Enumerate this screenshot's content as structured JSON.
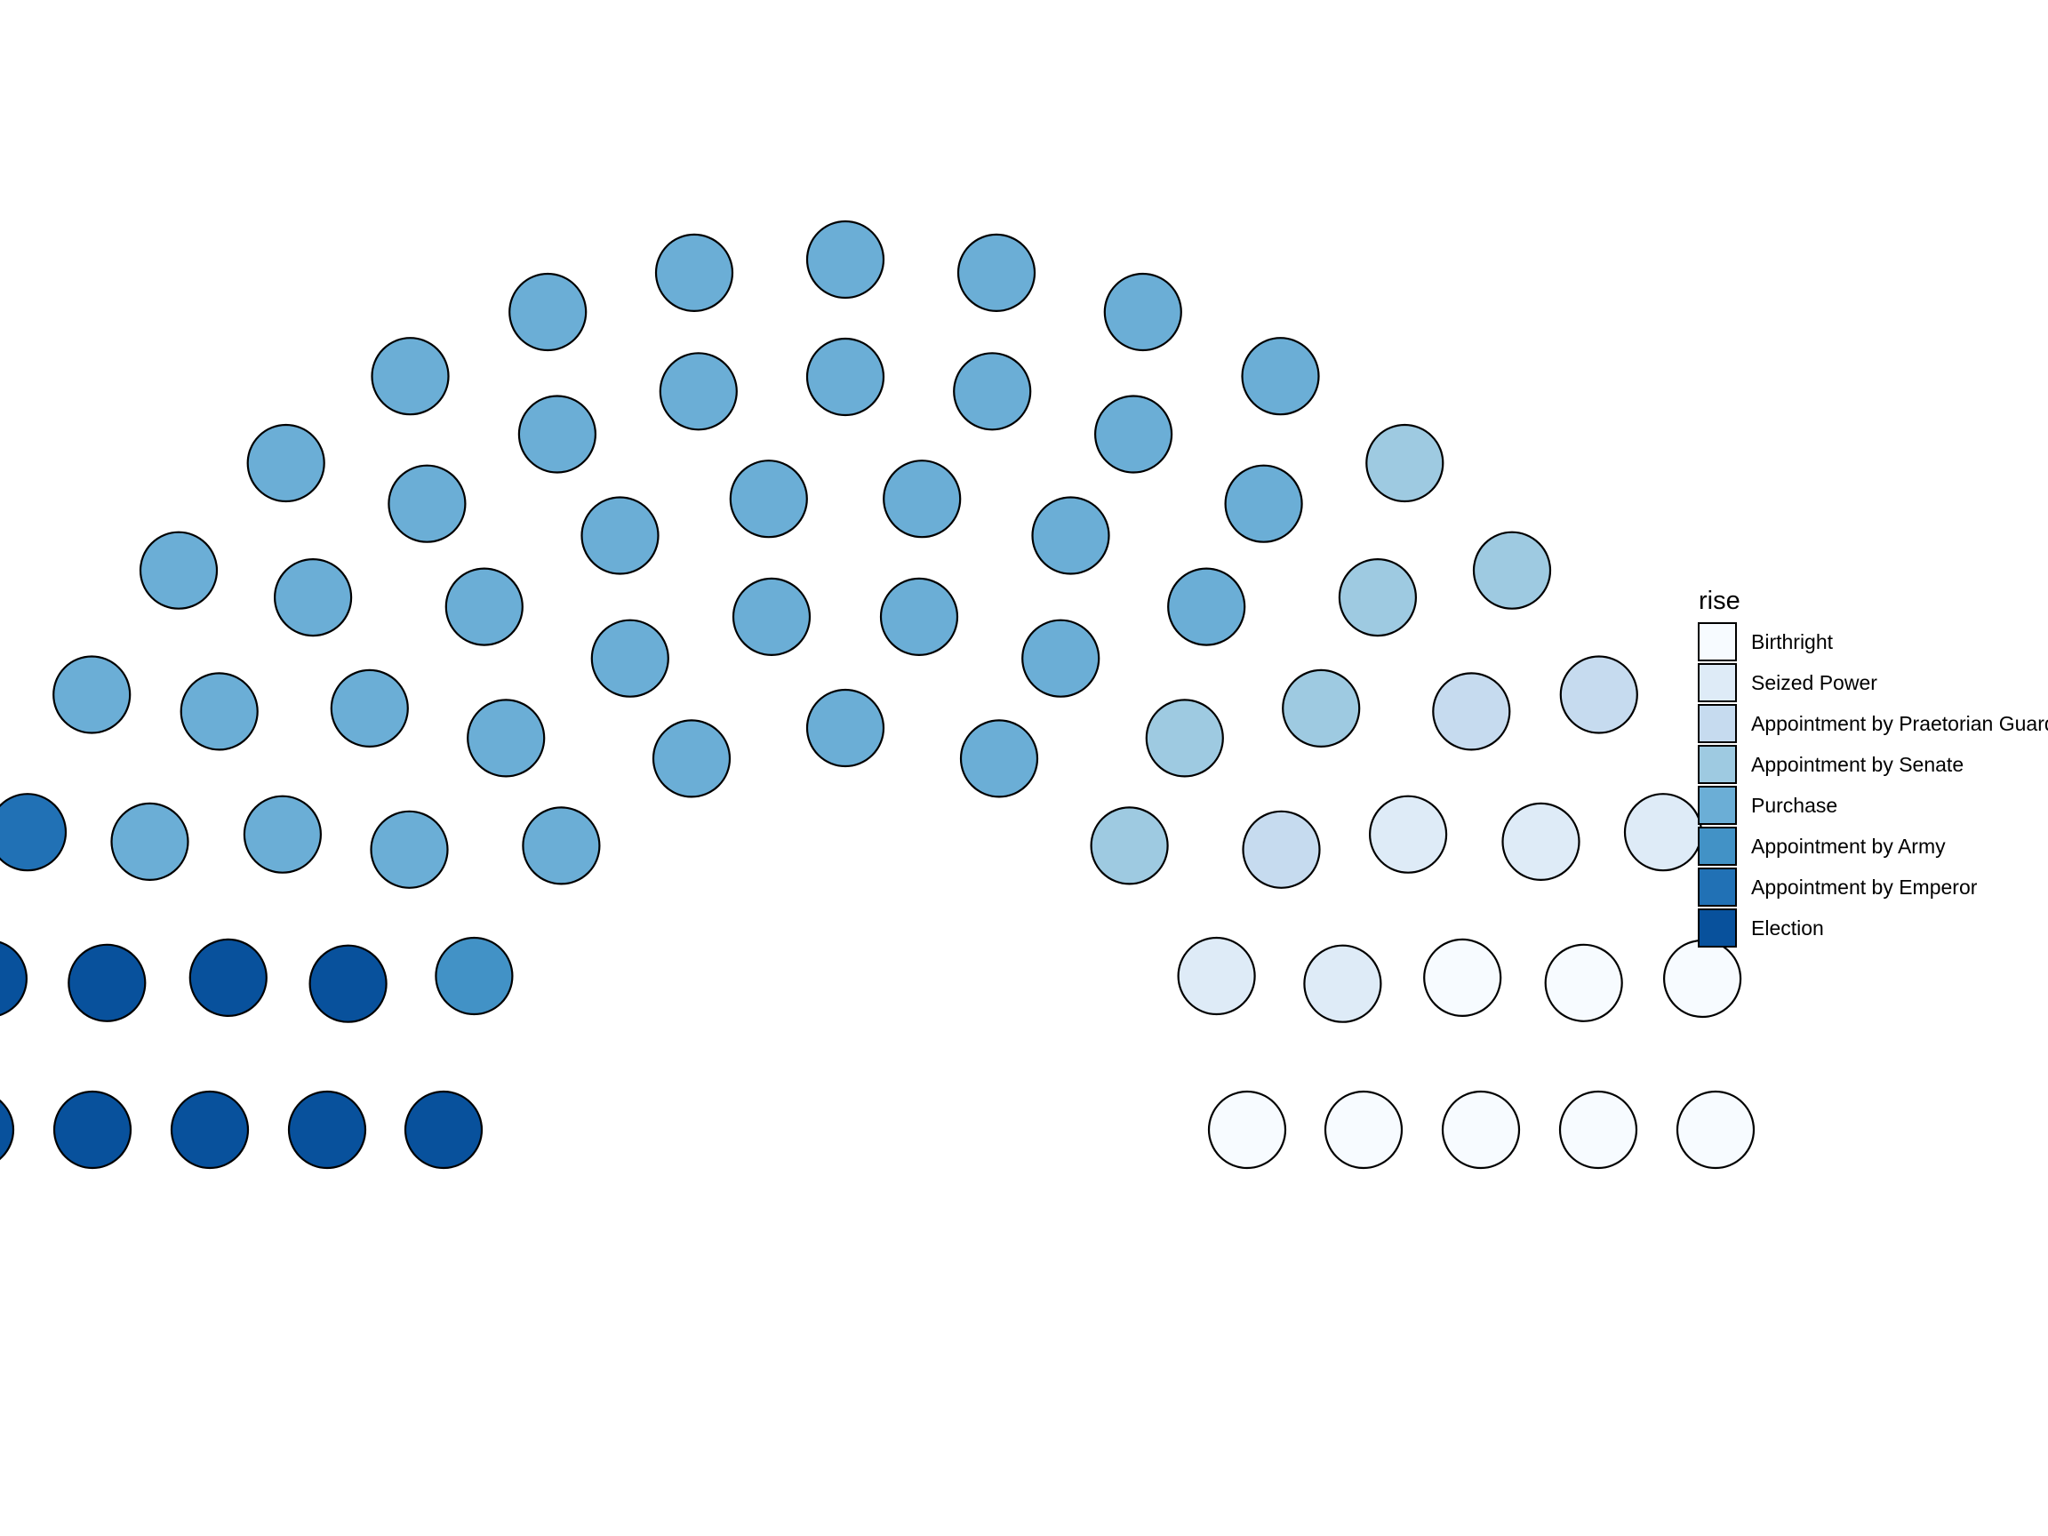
{
  "chart_data": {
    "type": "parliament",
    "title": "",
    "xlabel": "",
    "ylabel": "",
    "grid": false,
    "legend": {
      "title": "rise",
      "placement": "right"
    },
    "categories": [
      "Birthright",
      "Seized Power",
      "Appointment by Praetorian Guard",
      "Appointment by Senate",
      "Purchase",
      "Appointment by Army",
      "Appointment by Emperor",
      "Election"
    ],
    "colors": [
      "#f7fbff",
      "#deebf7",
      "#c6dbef",
      "#9ecae1",
      "#6baed6",
      "#4292c6",
      "#2171b5",
      "#08519c"
    ],
    "seat_order": [
      "Election",
      "Appointment by Emperor",
      "Appointment by Army",
      "Purchase",
      "Appointment by Senate",
      "Appointment by Praetorian Guard",
      "Seized Power",
      "Birthright"
    ],
    "values": [
      8,
      5,
      3,
      6,
      38,
      1,
      1,
      9
    ],
    "total_seats": 71,
    "rows": 5
  }
}
